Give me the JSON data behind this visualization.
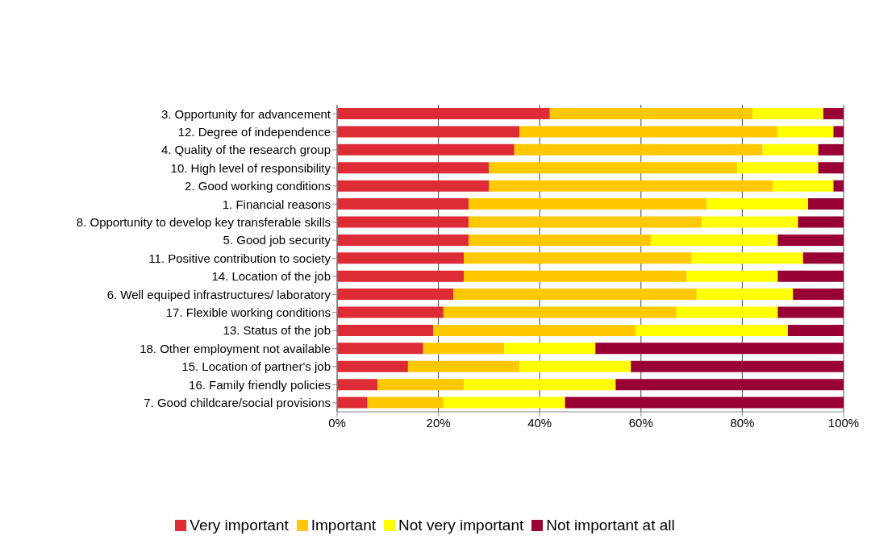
{
  "chart_data": {
    "type": "bar",
    "orientation": "horizontal",
    "stacked": true,
    "categories": [
      "3. Opportunity for advancement",
      "12. Degree of independence",
      "4. Quality of the research group",
      "10. High level of responsibility",
      "2. Good working conditions",
      "1. Financial reasons",
      "8. Opportunity to develop key transferable skills",
      "5. Good job security",
      "11. Positive contribution to society",
      "14. Location of the job",
      "6. Well equiped infrastructures/ laboratory",
      "17. Flexible working conditions",
      "13. Status of the job",
      "18. Other employment not available",
      "15. Location of partner's job",
      "16. Family friendly policies",
      "7. Good childcare/social provisions"
    ],
    "series": [
      {
        "name": "Very important",
        "color": "#dd2c35",
        "values": [
          42,
          36,
          35,
          30,
          30,
          26,
          26,
          26,
          25,
          25,
          23,
          21,
          19,
          17,
          14,
          8,
          6
        ]
      },
      {
        "name": "Important",
        "color": "#ffc800",
        "values": [
          40,
          51,
          49,
          49,
          56,
          47,
          46,
          36,
          45,
          44,
          48,
          46,
          40,
          16,
          22,
          17,
          15
        ]
      },
      {
        "name": "Not very important",
        "color": "#ffff00",
        "values": [
          14,
          11,
          11,
          16,
          12,
          20,
          19,
          25,
          22,
          18,
          19,
          20,
          30,
          18,
          22,
          30,
          24
        ]
      },
      {
        "name": "Not important at all",
        "color": "#990033",
        "values": [
          4,
          2,
          5,
          5,
          2,
          7,
          9,
          13,
          8,
          13,
          10,
          13,
          11,
          49,
          42,
          45,
          55
        ]
      }
    ],
    "xlim": [
      0,
      100
    ],
    "xticks": [
      {
        "value": 0,
        "label": "0%"
      },
      {
        "value": 20,
        "label": "20%"
      },
      {
        "value": 40,
        "label": "40%"
      },
      {
        "value": 60,
        "label": "60%"
      },
      {
        "value": 80,
        "label": "80%"
      },
      {
        "value": 100,
        "label": "100%"
      }
    ],
    "grid": "x",
    "legend": "bottom"
  }
}
